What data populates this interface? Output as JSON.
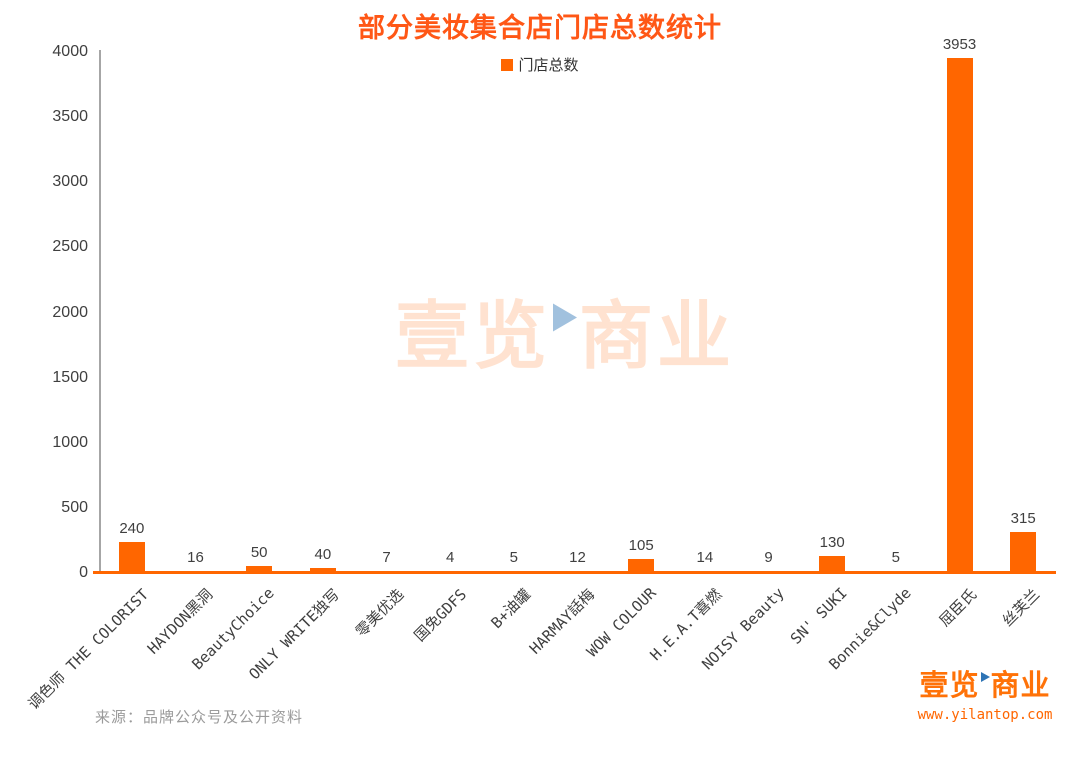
{
  "title": "部分美妆集合店门店总数统计",
  "legend": {
    "label": "门店总数"
  },
  "chart_data": {
    "type": "bar",
    "title": "部分美妆集合店门店总数统计",
    "series_name": "门店总数",
    "categories": [
      "调色师 THE COLORIST",
      "HAYDON黑洞",
      "BeautyChoice",
      "ONLY WRITE独写",
      "零美优选",
      "国免GDFS",
      "B+油罐",
      "HARMAY話梅",
      "WOW COLOUR",
      "H.E.A.T喜燃",
      "NOISY Beauty",
      "SN' SUKI",
      "Bonnie&Clyde",
      "屈臣氏",
      "丝芙兰"
    ],
    "values": [
      240,
      16,
      50,
      40,
      7,
      4,
      5,
      12,
      105,
      14,
      9,
      130,
      5,
      3953,
      315
    ],
    "ylim": [
      0,
      4000
    ],
    "ytick_step": 500,
    "bar_color": "#FF6600",
    "grid": false,
    "legend_position": "top-center",
    "value_labels": true
  },
  "source_note": "来源：品牌公众号及公开资料",
  "watermark": {
    "text_left": "壹览",
    "text_right": "商业"
  },
  "branding": {
    "logo_left": "壹览",
    "logo_right": "商业",
    "website": "www.yilantop.com"
  },
  "colors": {
    "bar": "#FF6600",
    "title": "#FF5716",
    "axis_line": "#A6A6A6",
    "baseline": "#FF6600",
    "tick_text": "#3F3F3F",
    "source_text": "#9B9B9B",
    "logo_orange": "#FF7208",
    "triangle_blue": "#2E74B5"
  }
}
